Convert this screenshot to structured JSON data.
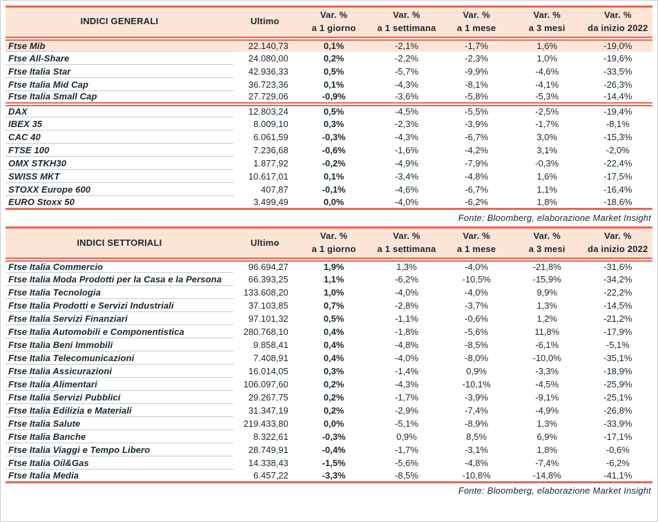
{
  "colors": {
    "accent_red": "#f0624e",
    "header_bg": "#fce5d6",
    "highlight_bg": "#fce5d6",
    "text": "#182630",
    "row_line": "#c8c9ca"
  },
  "tables": [
    {
      "title": "INDICI GENERALI",
      "ultimo_label": "Ultimo",
      "var_headers": [
        [
          "Var. %",
          "a 1 giorno"
        ],
        [
          "Var. %",
          "a 1 settimana"
        ],
        [
          "Var. %",
          "a 1 mese"
        ],
        [
          "Var. %",
          "a 3 mesi"
        ],
        [
          "Var. %",
          "da inizio 2022"
        ]
      ],
      "source": "Fonte: Bloomberg, elaborazione Market Insight",
      "groups": [
        {
          "rows": [
            {
              "name": "Ftse Mib",
              "ultimo": "22.140,73",
              "vars": [
                "0,1%",
                "-2,1%",
                "-1,7%",
                "1,6%",
                "-19,0%"
              ],
              "highlight": true
            },
            {
              "name": "Ftse All-Share",
              "ultimo": "24.080,00",
              "vars": [
                "0,2%",
                "-2,2%",
                "-2,3%",
                "1,0%",
                "-19,6%"
              ]
            },
            {
              "name": "Ftse Italia Star",
              "ultimo": "42.936,33",
              "vars": [
                "0,5%",
                "-5,7%",
                "-9,9%",
                "-4,6%",
                "-33,5%"
              ]
            },
            {
              "name": "Ftse Italia Mid Cap",
              "ultimo": "36.723,36",
              "vars": [
                "0,1%",
                "-4,3%",
                "-8,1%",
                "-4,1%",
                "-26,3%"
              ]
            },
            {
              "name": "Ftse Italia Small Cap",
              "ultimo": "27.729,06",
              "vars": [
                "-0,9%",
                "-3,6%",
                "-5,8%",
                "-5,3%",
                "-14,4%"
              ]
            }
          ]
        },
        {
          "rows": [
            {
              "name": "DAX",
              "ultimo": "12.803,24",
              "vars": [
                "0,5%",
                "-4,5%",
                "-5,5%",
                "-2,5%",
                "-19,4%"
              ]
            },
            {
              "name": "IBEX 35",
              "ultimo": "8.009,10",
              "vars": [
                "0,3%",
                "-2,3%",
                "-3,9%",
                "-1,7%",
                "-8,1%"
              ]
            },
            {
              "name": "CAC 40",
              "ultimo": "6.061,59",
              "vars": [
                "-0,3%",
                "-4,3%",
                "-6,7%",
                "3,0%",
                "-15,3%"
              ]
            },
            {
              "name": "FTSE 100",
              "ultimo": "7.236,68",
              "vars": [
                "-0,6%",
                "-1,6%",
                "-4,2%",
                "3,1%",
                "-2,0%"
              ]
            },
            {
              "name": "OMX STKH30",
              "ultimo": "1.877,92",
              "vars": [
                "-0,2%",
                "-4,9%",
                "-7,9%",
                "-0,3%",
                "-22,4%"
              ]
            },
            {
              "name": "SWISS MKT",
              "ultimo": "10.617,01",
              "vars": [
                "0,1%",
                "-3,4%",
                "-4,8%",
                "1,6%",
                "-17,5%"
              ]
            },
            {
              "name": "STOXX Europe 600",
              "ultimo": "407,87",
              "vars": [
                "-0,1%",
                "-4,6%",
                "-6,7%",
                "1,1%",
                "-16,4%"
              ]
            },
            {
              "name": "EURO Stoxx 50",
              "ultimo": "3.499,49",
              "vars": [
                "0,0%",
                "-4,0%",
                "-6,2%",
                "1,8%",
                "-18,6%"
              ]
            }
          ]
        }
      ]
    },
    {
      "title": "INDICI SETTORIALI",
      "ultimo_label": "Ultimo",
      "var_headers": [
        [
          "Var. %",
          "a 1 giorno"
        ],
        [
          "Var. %",
          "a 1 settimana"
        ],
        [
          "Var. %",
          "a 1 mese"
        ],
        [
          "Var. %",
          "a 3 mesi"
        ],
        [
          "Var. %",
          "da inizio 2022"
        ]
      ],
      "source": "Fonte: Bloomberg, elaborazione Market Insight",
      "groups": [
        {
          "rows": [
            {
              "name": "Ftse Italia Commercio",
              "ultimo": "96.694,27",
              "vars": [
                "1,9%",
                "1,3%",
                "-4,0%",
                "-21,8%",
                "-31,6%"
              ]
            },
            {
              "name": "Ftse Italia Moda Prodotti per la Casa e la Persona",
              "ultimo": "66.393,25",
              "vars": [
                "1,1%",
                "-6,2%",
                "-10,5%",
                "-15,9%",
                "-34,2%"
              ]
            },
            {
              "name": "Ftse Italia Tecnologia",
              "ultimo": "133.608,20",
              "vars": [
                "1,0%",
                "-4,0%",
                "-4,0%",
                "9,9%",
                "-22,2%"
              ]
            },
            {
              "name": "Ftse Italia Prodotti e Servizi Industriali",
              "ultimo": "37.103,85",
              "vars": [
                "0,7%",
                "-2,8%",
                "-3,7%",
                "1,3%",
                "-14,5%"
              ]
            },
            {
              "name": "Ftse Italia Servizi Finanziari",
              "ultimo": "97.101,32",
              "vars": [
                "0,5%",
                "-1,1%",
                "-0,6%",
                "1,2%",
                "-21,2%"
              ]
            },
            {
              "name": "Ftse Italia Automobili e Componentistica",
              "ultimo": "280.768,10",
              "vars": [
                "0,4%",
                "-1,8%",
                "-5,6%",
                "11,8%",
                "-17,9%"
              ]
            },
            {
              "name": "Ftse Italia Beni Immobili",
              "ultimo": "9.858,41",
              "vars": [
                "0,4%",
                "-4,8%",
                "-8,5%",
                "-6,1%",
                "-5,1%"
              ]
            },
            {
              "name": "Ftse Italia Telecomunicazioni",
              "ultimo": "7.408,91",
              "vars": [
                "0,4%",
                "-4,0%",
                "-8,0%",
                "-10,0%",
                "-35,1%"
              ]
            },
            {
              "name": "Ftse Italia Assicurazioni",
              "ultimo": "16.014,05",
              "vars": [
                "0,3%",
                "-1,4%",
                "0,9%",
                "-3,3%",
                "-18,9%"
              ]
            },
            {
              "name": "Ftse Italia Alimentari",
              "ultimo": "106.097,60",
              "vars": [
                "0,2%",
                "-4,3%",
                "-10,1%",
                "-4,5%",
                "-25,9%"
              ]
            },
            {
              "name": "Ftse Italia Servizi Pubblici",
              "ultimo": "29.267,75",
              "vars": [
                "0,2%",
                "-1,7%",
                "-3,9%",
                "-9,1%",
                "-25,1%"
              ]
            },
            {
              "name": "Ftse Italia Edilizia e Materiali",
              "ultimo": "31.347,19",
              "vars": [
                "0,2%",
                "-2,9%",
                "-7,4%",
                "-4,9%",
                "-26,8%"
              ]
            },
            {
              "name": "Ftse Italia Salute",
              "ultimo": "219.433,80",
              "vars": [
                "0,0%",
                "-5,1%",
                "-8,9%",
                "1,3%",
                "-33,9%"
              ]
            },
            {
              "name": "Ftse Italia Banche",
              "ultimo": "8.322,61",
              "vars": [
                "-0,3%",
                "0,9%",
                "8,5%",
                "6,9%",
                "-17,1%"
              ]
            },
            {
              "name": "Ftse Italia Viaggi e Tempo Libero",
              "ultimo": "28.749,91",
              "vars": [
                "-0,4%",
                "-1,7%",
                "-3,1%",
                "1,8%",
                "-0,6%"
              ]
            },
            {
              "name": "Ftse Italia Oil&Gas",
              "ultimo": "14.338,43",
              "vars": [
                "-1,5%",
                "-5,6%",
                "-4,8%",
                "-7,4%",
                "-6,2%"
              ]
            },
            {
              "name": "Ftse Italia Media",
              "ultimo": "6.457,22",
              "vars": [
                "-3,3%",
                "-8,5%",
                "-10,8%",
                "-14,8%",
                "-41,1%"
              ]
            }
          ]
        }
      ]
    }
  ]
}
